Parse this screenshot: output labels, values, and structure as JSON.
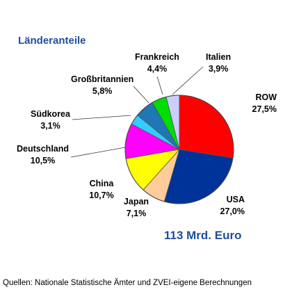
{
  "chart_data": {
    "type": "pie",
    "title": "Länderanteile",
    "total_label": "113 Mrd. Euro",
    "source": "Quellen: Nationale Statistische Ämter und ZVEI-eigene Berechnungen",
    "slices": [
      {
        "name": "ROW",
        "value_label": "27,5%",
        "value": 27.5,
        "color": "#ff0000"
      },
      {
        "name": "USA",
        "value_label": "27,0%",
        "value": 27.0,
        "color": "#003399"
      },
      {
        "name": "Japan",
        "value_label": "7,1%",
        "value": 7.1,
        "color": "#ffcc99"
      },
      {
        "name": "China",
        "value_label": "10,7%",
        "value": 10.7,
        "color": "#ffff00"
      },
      {
        "name": "Deutschland",
        "value_label": "10,5%",
        "value": 10.5,
        "color": "#ff00ff"
      },
      {
        "name": "Südkorea",
        "value_label": "3,1%",
        "value": 3.1,
        "color": "#33ccff"
      },
      {
        "name": "Großbritannien",
        "value_label": "5,8%",
        "value": 5.8,
        "color": "#1f77b4"
      },
      {
        "name": "Frankreich",
        "value_label": "4,4%",
        "value": 4.4,
        "color": "#00dd00"
      },
      {
        "name": "Italien",
        "value_label": "3,9%",
        "value": 3.9,
        "color": "#ccccff"
      }
    ]
  }
}
